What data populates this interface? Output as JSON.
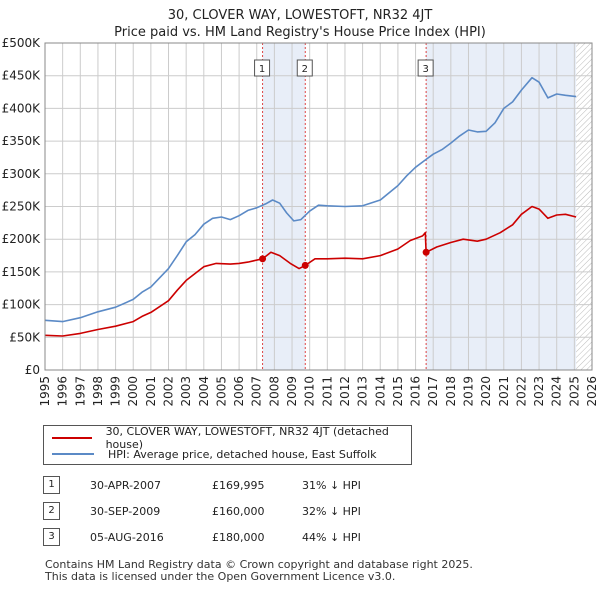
{
  "title_line1": "30, CLOVER WAY, LOWESTOFT, NR32 4JT",
  "title_line2": "Price paid vs. HM Land Registry's House Price Index (HPI)",
  "legend": {
    "red_label": "30, CLOVER WAY, LOWESTOFT, NR32 4JT (detached house)",
    "blue_label": "HPI: Average price, detached house, East Suffolk"
  },
  "colors": {
    "red": "#cc0000",
    "blue": "#5b8ac6",
    "shade": "#e8eef8",
    "grid": "#cccccc"
  },
  "sales": [
    {
      "num": "1",
      "date": "30-APR-2007",
      "price": "£169,995",
      "hpi": "31% ↓ HPI"
    },
    {
      "num": "2",
      "date": "30-SEP-2009",
      "price": "£160,000",
      "hpi": "32% ↓ HPI"
    },
    {
      "num": "3",
      "date": "05-AUG-2016",
      "price": "£180,000",
      "hpi": "44% ↓ HPI"
    }
  ],
  "footer": {
    "line1": "Contains HM Land Registry data © Crown copyright and database right 2025.",
    "line2": "This data is licensed under the Open Government Licence v3.0."
  },
  "chart_data": {
    "type": "line",
    "xlim": [
      1995,
      2026
    ],
    "ylim": [
      0,
      500000
    ],
    "x_ticks": [
      1995,
      1996,
      1997,
      1998,
      1999,
      2000,
      2001,
      2002,
      2003,
      2004,
      2005,
      2006,
      2007,
      2008,
      2009,
      2010,
      2011,
      2012,
      2013,
      2014,
      2015,
      2016,
      2017,
      2018,
      2019,
      2020,
      2021,
      2022,
      2023,
      2024,
      2025,
      2026
    ],
    "y_ticks": [
      0,
      50000,
      100000,
      150000,
      200000,
      250000,
      300000,
      350000,
      400000,
      450000,
      500000
    ],
    "y_tick_labels": [
      "£0",
      "£50K",
      "£100K",
      "£150K",
      "£200K",
      "£250K",
      "£300K",
      "£350K",
      "£400K",
      "£450K",
      "£500K"
    ],
    "grid": true,
    "hatched_future_from": 2025.1,
    "shaded_ranges": [
      [
        2007.33,
        2009.75
      ],
      [
        2016.6,
        2025.1
      ]
    ],
    "sale_markers": [
      {
        "label": "1",
        "x": 2007.33,
        "y": 169995
      },
      {
        "label": "2",
        "x": 2009.75,
        "y": 160000
      },
      {
        "label": "3",
        "x": 2016.6,
        "y": 180000
      }
    ],
    "series": [
      {
        "name": "30, CLOVER WAY, LOWESTOFT, NR32 4JT (detached house)",
        "color": "#cc0000",
        "points": [
          [
            1995.0,
            53000
          ],
          [
            1996.0,
            52000
          ],
          [
            1997.0,
            56000
          ],
          [
            1998.0,
            62000
          ],
          [
            1999.0,
            67000
          ],
          [
            2000.0,
            74000
          ],
          [
            2000.5,
            82000
          ],
          [
            2001.0,
            88000
          ],
          [
            2002.0,
            106000
          ],
          [
            2002.5,
            122000
          ],
          [
            2003.0,
            137000
          ],
          [
            2004.0,
            158000
          ],
          [
            2004.7,
            163000
          ],
          [
            2005.5,
            162000
          ],
          [
            2006.0,
            163000
          ],
          [
            2006.5,
            165000
          ],
          [
            2007.33,
            169995
          ],
          [
            2007.8,
            180000
          ],
          [
            2008.3,
            175000
          ],
          [
            2008.9,
            163000
          ],
          [
            2009.4,
            155000
          ],
          [
            2009.75,
            160000
          ],
          [
            2010.3,
            170000
          ],
          [
            2011.0,
            170000
          ],
          [
            2012.0,
            171000
          ],
          [
            2013.0,
            170000
          ],
          [
            2014.0,
            175000
          ],
          [
            2015.0,
            185000
          ],
          [
            2015.7,
            198000
          ],
          [
            2016.4,
            205000
          ],
          [
            2016.55,
            210000
          ],
          [
            2016.6,
            180000
          ],
          [
            2017.2,
            188000
          ],
          [
            2018.0,
            195000
          ],
          [
            2018.7,
            200000
          ],
          [
            2019.5,
            197000
          ],
          [
            2020.0,
            200000
          ],
          [
            2020.8,
            210000
          ],
          [
            2021.5,
            222000
          ],
          [
            2022.0,
            238000
          ],
          [
            2022.6,
            250000
          ],
          [
            2023.0,
            246000
          ],
          [
            2023.5,
            232000
          ],
          [
            2024.0,
            237000
          ],
          [
            2024.5,
            238000
          ],
          [
            2025.1,
            234000
          ]
        ]
      },
      {
        "name": "HPI: Average price, detached house, East Suffolk",
        "color": "#5b8ac6",
        "points": [
          [
            1995.0,
            76000
          ],
          [
            1996.0,
            74000
          ],
          [
            1997.0,
            80000
          ],
          [
            1998.0,
            89000
          ],
          [
            1999.0,
            96000
          ],
          [
            2000.0,
            108000
          ],
          [
            2000.5,
            119000
          ],
          [
            2001.0,
            127000
          ],
          [
            2002.0,
            155000
          ],
          [
            2002.5,
            175000
          ],
          [
            2003.0,
            196000
          ],
          [
            2003.5,
            207000
          ],
          [
            2004.0,
            223000
          ],
          [
            2004.5,
            232000
          ],
          [
            2005.0,
            234000
          ],
          [
            2005.5,
            230000
          ],
          [
            2006.0,
            236000
          ],
          [
            2006.5,
            244000
          ],
          [
            2007.0,
            248000
          ],
          [
            2007.5,
            254000
          ],
          [
            2007.9,
            260000
          ],
          [
            2008.3,
            255000
          ],
          [
            2008.7,
            240000
          ],
          [
            2009.1,
            228000
          ],
          [
            2009.5,
            230000
          ],
          [
            2010.0,
            243000
          ],
          [
            2010.5,
            252000
          ],
          [
            2011.0,
            251000
          ],
          [
            2012.0,
            250000
          ],
          [
            2013.0,
            251000
          ],
          [
            2014.0,
            260000
          ],
          [
            2015.0,
            282000
          ],
          [
            2015.5,
            297000
          ],
          [
            2016.0,
            310000
          ],
          [
            2016.6,
            322000
          ],
          [
            2017.0,
            330000
          ],
          [
            2017.5,
            337000
          ],
          [
            2018.0,
            347000
          ],
          [
            2018.5,
            358000
          ],
          [
            2019.0,
            367000
          ],
          [
            2019.5,
            364000
          ],
          [
            2020.0,
            365000
          ],
          [
            2020.5,
            378000
          ],
          [
            2021.0,
            400000
          ],
          [
            2021.5,
            410000
          ],
          [
            2022.0,
            428000
          ],
          [
            2022.6,
            447000
          ],
          [
            2023.0,
            440000
          ],
          [
            2023.5,
            416000
          ],
          [
            2024.0,
            422000
          ],
          [
            2024.5,
            420000
          ],
          [
            2025.1,
            418000
          ]
        ]
      }
    ]
  }
}
